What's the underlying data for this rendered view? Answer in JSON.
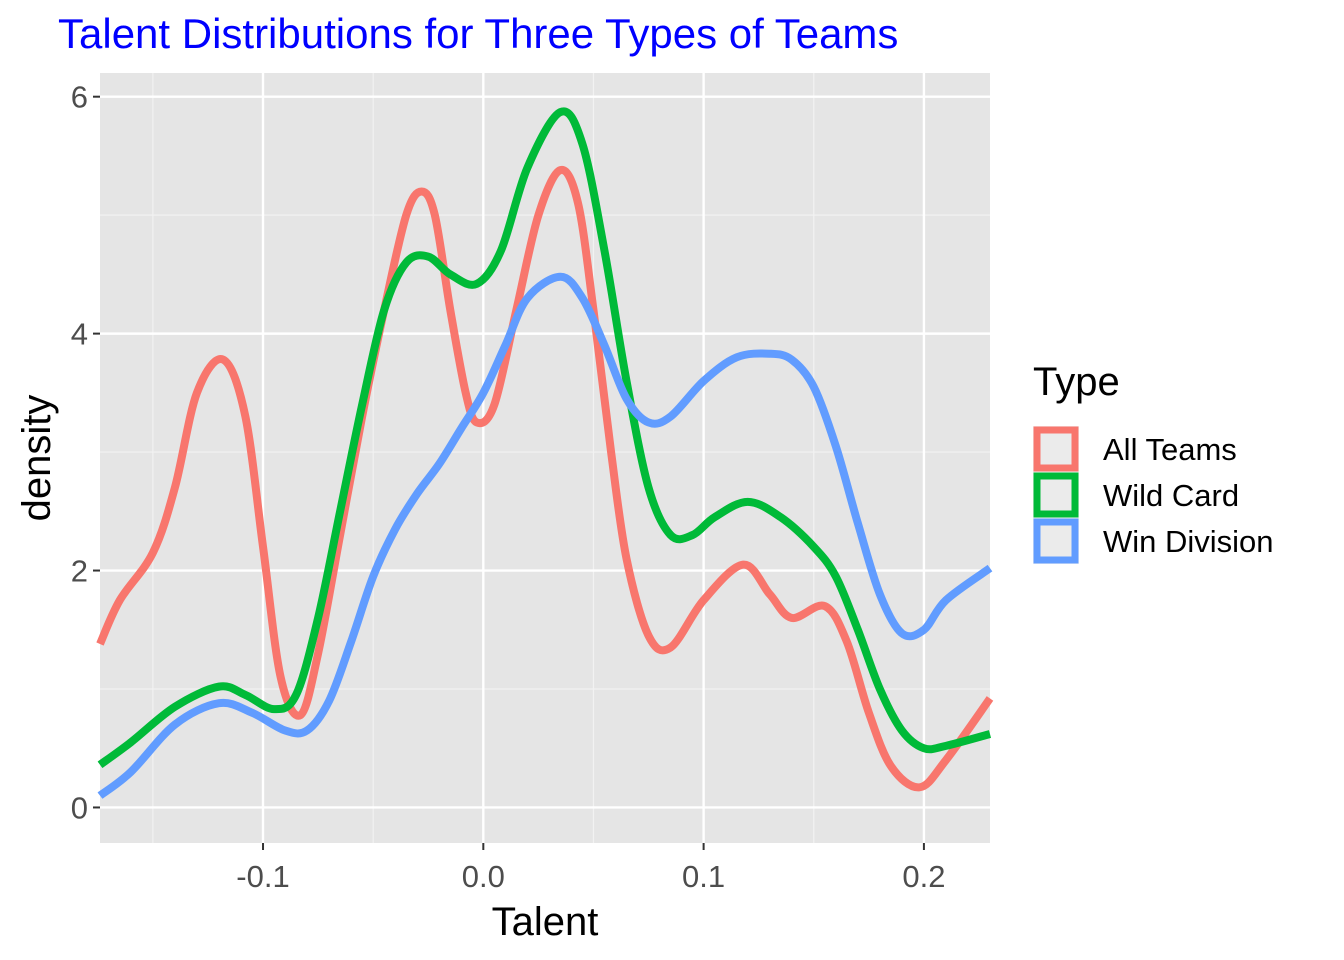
{
  "chart_data": {
    "type": "line",
    "title": "Talent Distributions for Three Types of Teams",
    "xlabel": "Talent",
    "ylabel": "density",
    "xlim": [
      -0.174,
      0.23
    ],
    "ylim": [
      -0.3,
      6.2
    ],
    "x_ticks": [
      -0.1,
      0.0,
      0.1,
      0.2
    ],
    "x_tick_labels": [
      "-0.1",
      "0.0",
      "0.1",
      "0.2"
    ],
    "y_ticks": [
      0,
      2,
      4,
      6
    ],
    "y_tick_labels": [
      "0",
      "2",
      "4",
      "6"
    ],
    "grid": true,
    "legend": {
      "title": "Type",
      "position": "right"
    },
    "series": [
      {
        "name": "All Teams",
        "color": "#F8766D",
        "points": [
          [
            -0.174,
            1.38
          ],
          [
            -0.165,
            1.75
          ],
          [
            -0.15,
            2.15
          ],
          [
            -0.14,
            2.7
          ],
          [
            -0.13,
            3.5
          ],
          [
            -0.118,
            3.78
          ],
          [
            -0.108,
            3.3
          ],
          [
            -0.1,
            2.2
          ],
          [
            -0.092,
            1.1
          ],
          [
            -0.083,
            0.78
          ],
          [
            -0.075,
            1.3
          ],
          [
            -0.065,
            2.3
          ],
          [
            -0.055,
            3.3
          ],
          [
            -0.045,
            4.2
          ],
          [
            -0.035,
            5.0
          ],
          [
            -0.028,
            5.2
          ],
          [
            -0.022,
            5.0
          ],
          [
            -0.015,
            4.2
          ],
          [
            -0.008,
            3.5
          ],
          [
            -0.003,
            3.25
          ],
          [
            0.005,
            3.4
          ],
          [
            0.015,
            4.2
          ],
          [
            0.025,
            5.0
          ],
          [
            0.035,
            5.38
          ],
          [
            0.043,
            5.1
          ],
          [
            0.05,
            4.2
          ],
          [
            0.058,
            3.0
          ],
          [
            0.065,
            2.1
          ],
          [
            0.075,
            1.45
          ],
          [
            0.085,
            1.35
          ],
          [
            0.1,
            1.75
          ],
          [
            0.118,
            2.05
          ],
          [
            0.13,
            1.8
          ],
          [
            0.14,
            1.6
          ],
          [
            0.155,
            1.7
          ],
          [
            0.165,
            1.4
          ],
          [
            0.175,
            0.8
          ],
          [
            0.185,
            0.35
          ],
          [
            0.198,
            0.17
          ],
          [
            0.21,
            0.4
          ],
          [
            0.23,
            0.92
          ]
        ]
      },
      {
        "name": "Wild Card",
        "color": "#00BA38",
        "points": [
          [
            -0.174,
            0.36
          ],
          [
            -0.16,
            0.55
          ],
          [
            -0.14,
            0.85
          ],
          [
            -0.12,
            1.02
          ],
          [
            -0.108,
            0.95
          ],
          [
            -0.095,
            0.83
          ],
          [
            -0.085,
            0.95
          ],
          [
            -0.075,
            1.6
          ],
          [
            -0.065,
            2.5
          ],
          [
            -0.055,
            3.4
          ],
          [
            -0.045,
            4.2
          ],
          [
            -0.035,
            4.6
          ],
          [
            -0.025,
            4.65
          ],
          [
            -0.015,
            4.5
          ],
          [
            -0.003,
            4.42
          ],
          [
            0.008,
            4.7
          ],
          [
            0.02,
            5.4
          ],
          [
            0.035,
            5.87
          ],
          [
            0.045,
            5.6
          ],
          [
            0.055,
            4.7
          ],
          [
            0.065,
            3.6
          ],
          [
            0.075,
            2.7
          ],
          [
            0.085,
            2.3
          ],
          [
            0.095,
            2.3
          ],
          [
            0.105,
            2.45
          ],
          [
            0.12,
            2.58
          ],
          [
            0.135,
            2.45
          ],
          [
            0.15,
            2.2
          ],
          [
            0.16,
            1.95
          ],
          [
            0.17,
            1.5
          ],
          [
            0.18,
            1.0
          ],
          [
            0.19,
            0.65
          ],
          [
            0.2,
            0.5
          ],
          [
            0.21,
            0.52
          ],
          [
            0.23,
            0.62
          ]
        ]
      },
      {
        "name": "Win Division",
        "color": "#619CFF",
        "points": [
          [
            -0.174,
            0.1
          ],
          [
            -0.16,
            0.3
          ],
          [
            -0.14,
            0.7
          ],
          [
            -0.12,
            0.88
          ],
          [
            -0.105,
            0.8
          ],
          [
            -0.09,
            0.65
          ],
          [
            -0.08,
            0.65
          ],
          [
            -0.07,
            0.9
          ],
          [
            -0.06,
            1.4
          ],
          [
            -0.05,
            1.95
          ],
          [
            -0.04,
            2.35
          ],
          [
            -0.03,
            2.65
          ],
          [
            -0.02,
            2.9
          ],
          [
            -0.01,
            3.2
          ],
          [
            0.0,
            3.5
          ],
          [
            0.01,
            3.9
          ],
          [
            0.02,
            4.3
          ],
          [
            0.035,
            4.48
          ],
          [
            0.045,
            4.3
          ],
          [
            0.055,
            3.9
          ],
          [
            0.065,
            3.45
          ],
          [
            0.075,
            3.25
          ],
          [
            0.085,
            3.3
          ],
          [
            0.1,
            3.6
          ],
          [
            0.115,
            3.8
          ],
          [
            0.13,
            3.83
          ],
          [
            0.14,
            3.78
          ],
          [
            0.15,
            3.55
          ],
          [
            0.16,
            3.05
          ],
          [
            0.17,
            2.4
          ],
          [
            0.18,
            1.8
          ],
          [
            0.19,
            1.47
          ],
          [
            0.2,
            1.5
          ],
          [
            0.21,
            1.75
          ],
          [
            0.23,
            2.02
          ]
        ]
      }
    ]
  }
}
